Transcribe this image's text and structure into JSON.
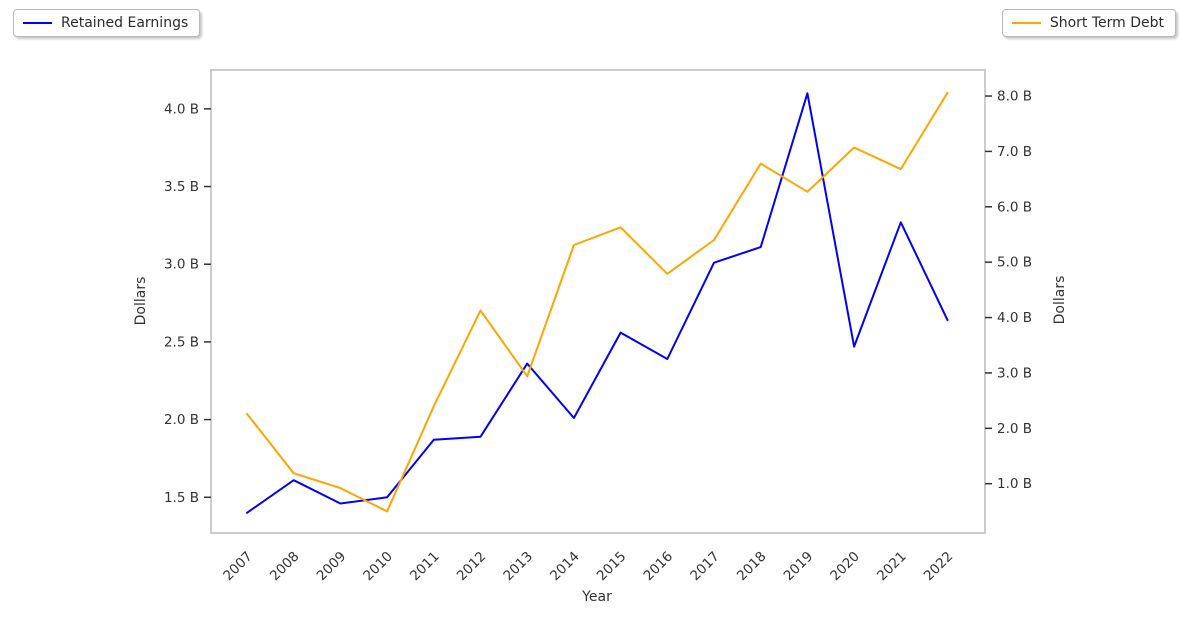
{
  "figure": {
    "background": "#ffffff",
    "text_color": "#333333",
    "border_color": "#cccccc"
  },
  "legends": {
    "left": {
      "label": "Retained Earnings",
      "color": "#0000ff"
    },
    "right": {
      "label": "Short Term Debt",
      "color": "#ffa500"
    }
  },
  "chart_data": {
    "type": "line",
    "title": "",
    "xlabel": "Year",
    "ylabel_left": "Dollars",
    "ylabel_right": "Dollars",
    "grid": false,
    "x_tick_rotation": 45,
    "legend_position": [
      "outside upper-left",
      "outside upper-right"
    ],
    "categories": [
      "2007",
      "2008",
      "2009",
      "2010",
      "2011",
      "2012",
      "2013",
      "2014",
      "2015",
      "2016",
      "2017",
      "2018",
      "2019",
      "2020",
      "2021",
      "2022"
    ],
    "series": [
      {
        "name": "Retained Earnings",
        "axis": "left",
        "color": "#0000ff",
        "unit": "B",
        "values": [
          1.4,
          1.61,
          1.46,
          1.5,
          1.87,
          1.89,
          2.36,
          2.01,
          2.56,
          2.39,
          3.01,
          3.11,
          4.1,
          2.47,
          3.27,
          2.64
        ]
      },
      {
        "name": "Short Term Debt",
        "axis": "right",
        "color": "#ffa500",
        "unit": "B",
        "values": [
          2.26,
          1.19,
          0.92,
          0.5,
          2.4,
          4.13,
          2.94,
          5.31,
          5.63,
          4.79,
          5.4,
          6.78,
          6.27,
          7.07,
          6.68,
          8.06
        ]
      }
    ],
    "axes": {
      "left": {
        "ylim": [
          1.27,
          4.25
        ],
        "ticks": [
          1.5,
          2.0,
          2.5,
          3.0,
          3.5,
          4.0
        ],
        "tick_labels": [
          "1.5 B",
          "2.0 B",
          "2.5 B",
          "3.0 B",
          "3.5 B",
          "4.0 B"
        ]
      },
      "right": {
        "ylim": [
          0.11,
          8.47
        ],
        "ticks": [
          1.0,
          2.0,
          3.0,
          4.0,
          5.0,
          6.0,
          7.0,
          8.0
        ],
        "tick_labels": [
          "1.0 B",
          "2.0 B",
          "3.0 B",
          "4.0 B",
          "5.0 B",
          "6.0 B",
          "7.0 B",
          "8.0 B"
        ]
      }
    }
  }
}
